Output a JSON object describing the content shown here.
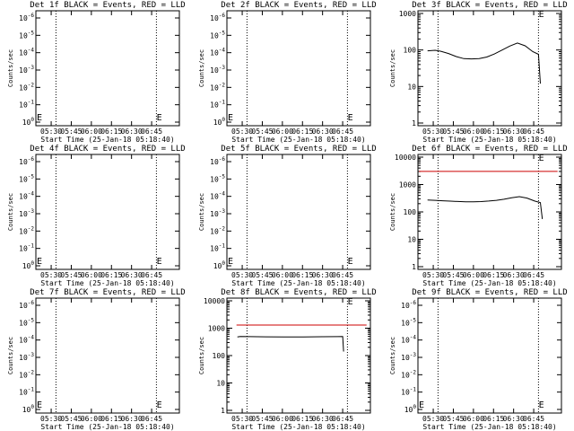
{
  "chart_data": [
    {
      "type": "line",
      "title": "Det 1f BLACK = Events, RED = LLD",
      "xlabel": "Start Time (25-Jan-18 05:18:40)",
      "ylabel": "Counts/sec",
      "yscale": "log",
      "yticks": [
        "10^0",
        "10^-1",
        "10^-2",
        "10^-3",
        "10^-4",
        "10^-5",
        "10^-6"
      ],
      "xticks": [
        "05:30",
        "05:45",
        "06:00",
        "06:15",
        "06:30",
        "06:45"
      ],
      "markers": [
        {
          "x": 0.19,
          "label": "E"
        },
        {
          "x": 6.45,
          "label": "E"
        }
      ],
      "series": []
    },
    {
      "type": "line",
      "title": "Det 2f BLACK = Events, RED = LLD",
      "xlabel": "Start Time (25-Jan-18 05:18:40)",
      "ylabel": "Counts/sec",
      "yscale": "log",
      "yticks": [
        "10^0",
        "10^-1",
        "10^-2",
        "10^-3",
        "10^-4",
        "10^-5",
        "10^-6"
      ],
      "xticks": [
        "05:30",
        "05:45",
        "06:00",
        "06:15",
        "06:30",
        "06:45"
      ],
      "markers": [
        {
          "x": 0.19,
          "label": "E"
        },
        {
          "x": 6.45,
          "label": "E"
        }
      ],
      "series": []
    },
    {
      "type": "line",
      "title": "Det 3f BLACK = Events, RED = LLD",
      "xlabel": "Start Time (25-Jan-18 05:18:40)",
      "ylabel": "Counts/sec",
      "yscale": "log",
      "yticks": [
        "1000",
        "100",
        "10",
        "1"
      ],
      "xticks": [
        "05:30",
        "05:45",
        "06:00",
        "06:15",
        "06:30",
        "06:45"
      ],
      "markers": [
        {
          "x": 6.45,
          "label": "E"
        }
      ],
      "series": [
        {
          "color": "#000000",
          "x": [
            0.5,
            0.9,
            1.2,
            1.6,
            2.0,
            2.4,
            2.8,
            3.2,
            3.6,
            4.0,
            4.4,
            4.8,
            5.2,
            5.6,
            6.0,
            6.3,
            6.4
          ],
          "y": [
            95,
            98,
            92,
            80,
            66,
            58,
            57,
            58,
            64,
            78,
            100,
            128,
            155,
            130,
            90,
            76,
            12
          ]
        }
      ]
    },
    {
      "type": "line",
      "title": "Det 4f BLACK = Events, RED = LLD",
      "xlabel": "Start Time (25-Jan-18 05:18:40)",
      "ylabel": "Counts/sec",
      "yscale": "log",
      "yticks": [
        "10^0",
        "10^-1",
        "10^-2",
        "10^-3",
        "10^-4",
        "10^-5",
        "10^-6"
      ],
      "xticks": [
        "05:30",
        "05:45",
        "06:00",
        "06:15",
        "06:30",
        "06:45"
      ],
      "markers": [
        {
          "x": 0.19,
          "label": "E"
        },
        {
          "x": 6.45,
          "label": "E"
        }
      ],
      "series": []
    },
    {
      "type": "line",
      "title": "Det 5f BLACK = Events, RED = LLD",
      "xlabel": "Start Time (25-Jan-18 05:18:40)",
      "ylabel": "Counts/sec",
      "yscale": "log",
      "yticks": [
        "10^0",
        "10^-1",
        "10^-2",
        "10^-3",
        "10^-4",
        "10^-5",
        "10^-6"
      ],
      "xticks": [
        "05:30",
        "05:45",
        "06:00",
        "06:15",
        "06:30",
        "06:45"
      ],
      "markers": [
        {
          "x": 0.19,
          "label": "E"
        },
        {
          "x": 6.45,
          "label": "E"
        }
      ],
      "series": []
    },
    {
      "type": "line",
      "title": "Det 6f BLACK = Events, RED = LLD",
      "xlabel": "Start Time (25-Jan-18 05:18:40)",
      "ylabel": "Counts/sec",
      "yscale": "log",
      "yticks": [
        "10000",
        "1000",
        "100",
        "10",
        "1"
      ],
      "xticks": [
        "05:30",
        "05:45",
        "06:00",
        "06:15",
        "06:30",
        "06:45"
      ],
      "markers": [
        {
          "x": 6.45,
          "label": "E"
        }
      ],
      "series": [
        {
          "color": "#cc0000",
          "x": [
            0.05,
            7.3
          ],
          "y": [
            3000,
            3000
          ]
        },
        {
          "color": "#000000",
          "x": [
            0.5,
            0.9,
            1.3,
            1.7,
            2.1,
            2.5,
            2.9,
            3.3,
            3.7,
            4.1,
            4.5,
            4.9,
            5.3,
            5.7,
            6.1,
            6.4,
            6.5
          ],
          "y": [
            270,
            265,
            255,
            248,
            240,
            235,
            235,
            238,
            250,
            265,
            290,
            330,
            360,
            320,
            250,
            220,
            55
          ]
        }
      ]
    },
    {
      "type": "line",
      "title": "Det 7f BLACK = Events, RED = LLD",
      "xlabel": "Start Time (25-Jan-18 05:18:40)",
      "ylabel": "Counts/sec",
      "yscale": "log",
      "yticks": [
        "10^0",
        "10^-1",
        "10^-2",
        "10^-3",
        "10^-4",
        "10^-5",
        "10^-6"
      ],
      "xticks": [
        "05:30",
        "05:45",
        "06:00",
        "06:15",
        "06:30",
        "06:45"
      ],
      "markers": [
        {
          "x": 0.19,
          "label": "E"
        },
        {
          "x": 6.45,
          "label": "E"
        }
      ],
      "series": []
    },
    {
      "type": "line",
      "title": "Det 8f BLACK = Events, RED = LLD",
      "xlabel": "Start Time (25-Jan-18 05:18:40)",
      "ylabel": "Counts/sec",
      "yscale": "log",
      "yticks": [
        "10000",
        "1000",
        "100",
        "10",
        "1"
      ],
      "xticks": [
        "05:30",
        "05:45",
        "06:00",
        "06:15",
        "06:30",
        "06:45"
      ],
      "markers": [
        {
          "x": 6.45,
          "label": "E"
        }
      ],
      "series": [
        {
          "color": "#cc0000",
          "x": [
            0.5,
            7.3
          ],
          "y": [
            1300,
            1300
          ]
        },
        {
          "color": "#000000",
          "x": [
            0.55,
            0.7,
            1.2,
            2.0,
            3.0,
            4.0,
            5.0,
            5.8,
            6.05,
            6.1
          ],
          "y": [
            480,
            500,
            490,
            485,
            480,
            482,
            488,
            490,
            495,
            140
          ]
        }
      ]
    },
    {
      "type": "line",
      "title": "Det 9f BLACK = Events, RED = LLD",
      "xlabel": "Start Time (25-Jan-18 05:18:40)",
      "ylabel": "Counts/sec",
      "yscale": "log",
      "yticks": [
        "10^0",
        "10^-1",
        "10^-2",
        "10^-3",
        "10^-4",
        "10^-5",
        "10^-6"
      ],
      "xticks": [
        "05:30",
        "05:45",
        "06:00",
        "06:15",
        "06:30",
        "06:45"
      ],
      "markers": [
        {
          "x": 0.19,
          "label": "E"
        },
        {
          "x": 6.45,
          "label": "E"
        }
      ],
      "series": []
    }
  ]
}
